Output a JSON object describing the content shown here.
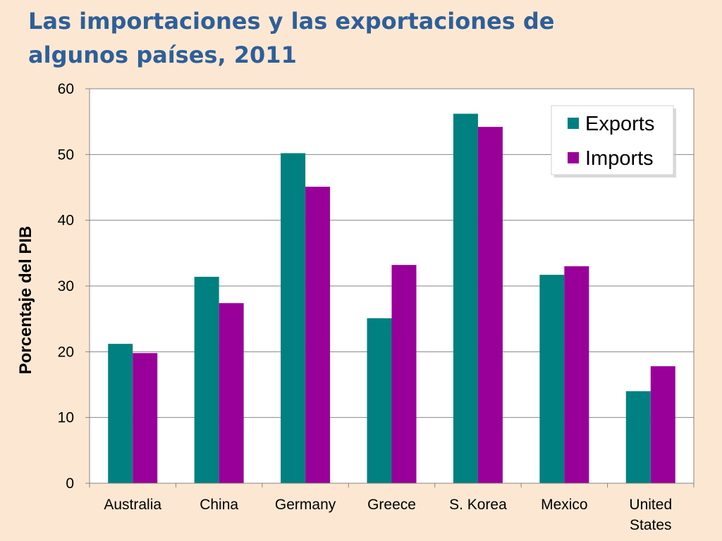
{
  "slide": {
    "title_line1": "Las importaciones y las exportaciones de",
    "title_line2": "algunos países, 2011"
  },
  "colors": {
    "background": "#fce8d2",
    "title": "#2e5f99",
    "exports": "#008080",
    "imports": "#990099",
    "grid": "#868686"
  },
  "chart_data": {
    "type": "bar",
    "title": "",
    "xlabel": "",
    "ylabel": "Porcentaje del PIB",
    "categories": [
      "Australia",
      "China",
      "Germany",
      "Greece",
      "S. Korea",
      "Mexico",
      "United States"
    ],
    "series": [
      {
        "name": "Exports",
        "color": "#008080",
        "values": [
          21.2,
          31.4,
          50.2,
          25.1,
          56.2,
          31.7,
          14.0
        ]
      },
      {
        "name": "Imports",
        "color": "#990099",
        "values": [
          19.8,
          27.4,
          45.1,
          33.2,
          54.2,
          33.0,
          17.8
        ]
      }
    ],
    "ylim": [
      0,
      60
    ],
    "yticks": [
      0,
      10,
      20,
      30,
      40,
      50,
      60
    ],
    "grid": true,
    "legend": "top-right"
  }
}
